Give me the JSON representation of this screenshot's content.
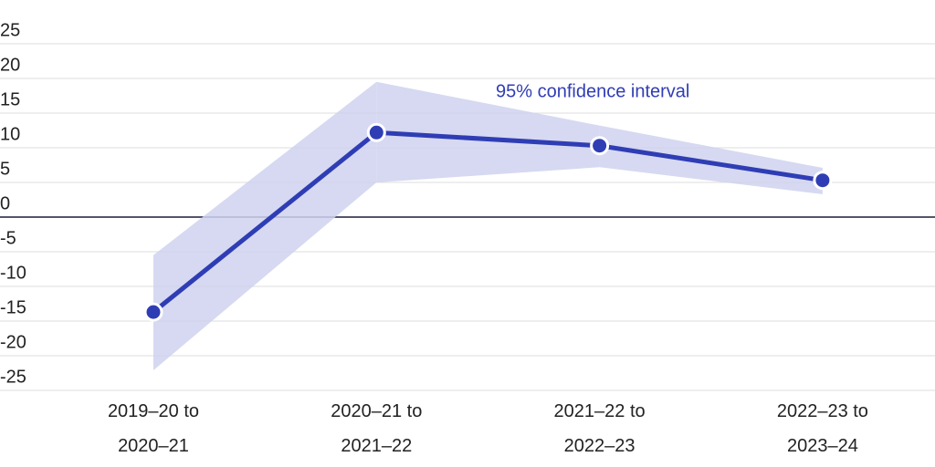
{
  "chart_data": {
    "type": "line",
    "categories": [
      "2019–20 to 2020–21",
      "2020–21 to 2021–22",
      "2021–22 to 2022–23",
      "2022–23 to 2023–24"
    ],
    "values": [
      -13.7,
      12.2,
      10.3,
      5.3
    ],
    "lower": [
      -22.1,
      5.0,
      7.2,
      3.3
    ],
    "upper": [
      -5.5,
      19.5,
      13.2,
      7.1
    ],
    "color": "#2f3db5",
    "band_color": "#cfd2ee",
    "annotation": "95% confidence interval",
    "ylim": [
      -25,
      25
    ],
    "yticks": [
      -25,
      -20,
      -15,
      -10,
      -5,
      0,
      5,
      10,
      15,
      20,
      25
    ],
    "grid": true
  }
}
